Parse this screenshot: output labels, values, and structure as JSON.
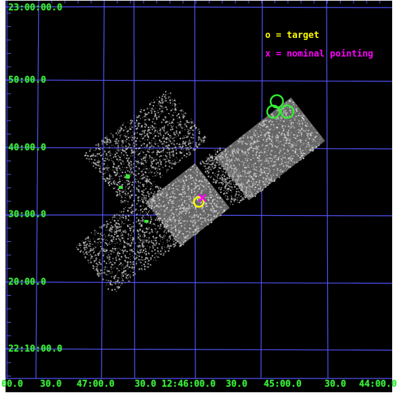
{
  "y_axis_labels": [
    "23:00:00.0",
    "50:00.0",
    "40:00.0",
    "30:00.0",
    "20:00.0",
    "22:10:00.0"
  ],
  "x_axis_labels": [
    "00.0",
    "30.0",
    "47:00.0",
    "30.0",
    "12:46:00.0",
    "30.0",
    "45:00.0",
    "30.0",
    "44:00.0"
  ],
  "legend": {
    "target": "o = target",
    "nominal": "x = nominal pointing"
  },
  "colors": {
    "grid": "#5555ff",
    "axis_text": "#39e639",
    "target": "#ffff00",
    "nominal": "#ff00ff",
    "sources": "#33ee33",
    "background": "#000000"
  }
}
